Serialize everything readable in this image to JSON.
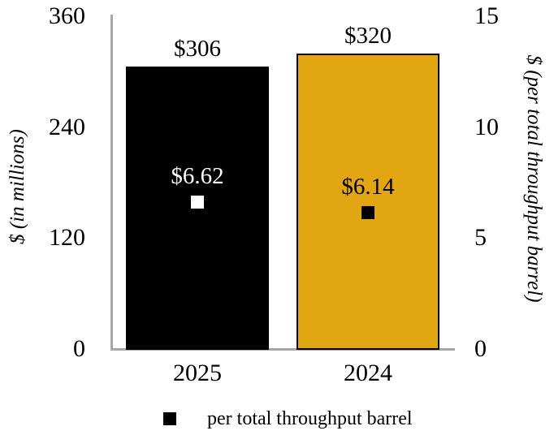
{
  "figure": {
    "background": "#FFFFFF"
  },
  "colors": {
    "axis_line": "#A6A6A6",
    "text": "#000000"
  },
  "chart_data": {
    "type": "bar",
    "categories": [
      "2025",
      "2024"
    ],
    "series": [
      {
        "name": "$ (in millions)",
        "type": "bar",
        "axis": "left",
        "values": [
          306,
          320
        ],
        "value_labels": [
          "$306",
          "$320"
        ],
        "bar_colors": [
          "#000000",
          "#E2A612"
        ],
        "bar_border_colors": [
          "#000000",
          "#000000"
        ],
        "label_colors": [
          "#000000",
          "#000000"
        ]
      },
      {
        "name": "per total throughput barrel",
        "type": "scatter",
        "marker": "square",
        "axis": "right",
        "values": [
          6.62,
          6.14
        ],
        "value_labels": [
          "$6.62",
          "$6.14"
        ],
        "marker_colors": [
          "#FFFFFF",
          "#000000"
        ],
        "label_colors": [
          "#FFFFFF",
          "#000000"
        ]
      }
    ],
    "left_axis": {
      "title": "$ (in millions)",
      "ticks": [
        "0",
        "120",
        "240",
        "360"
      ],
      "tick_values": [
        0,
        120,
        240,
        360
      ],
      "range": [
        0,
        360
      ]
    },
    "right_axis": {
      "title": "$ (per total throughput barrel)",
      "ticks": [
        "0",
        "5",
        "10",
        "15"
      ],
      "tick_values": [
        0,
        5,
        10,
        15
      ],
      "range": [
        0,
        15
      ]
    },
    "legend": {
      "position": "bottom",
      "items": [
        {
          "label": "per total throughput barrel",
          "marker": "square",
          "marker_color": "#000000"
        }
      ]
    },
    "grid": false
  }
}
